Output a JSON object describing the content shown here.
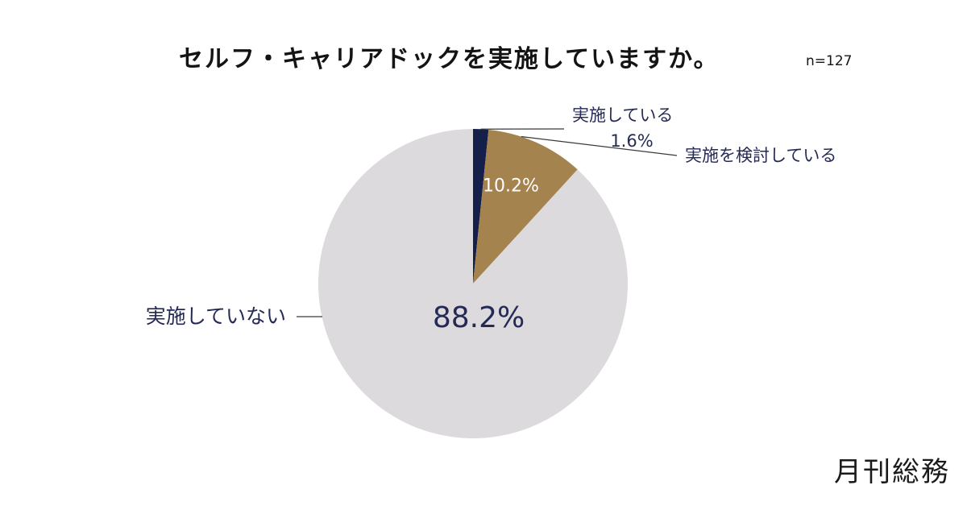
{
  "title": "セルフ・キャリアドックを実施していますか。",
  "sample_size": "n=127",
  "brand": "月刊総務",
  "chart_data": {
    "type": "pie",
    "title": "セルフ・キャリアドックを実施していますか。",
    "n": 127,
    "start_angle_deg": 0,
    "direction": "clockwise",
    "slices": [
      {
        "label": "実施している",
        "value": 1.6,
        "value_label": "1.6%",
        "color": "#15204a"
      },
      {
        "label": "実施を検討している",
        "value": 10.2,
        "value_label": "10.2%",
        "color": "#a4834e"
      },
      {
        "label": "実施していない",
        "value": 88.2,
        "value_label": "88.2%",
        "color": "#dcdadd"
      }
    ],
    "label_color": "#252a55"
  }
}
